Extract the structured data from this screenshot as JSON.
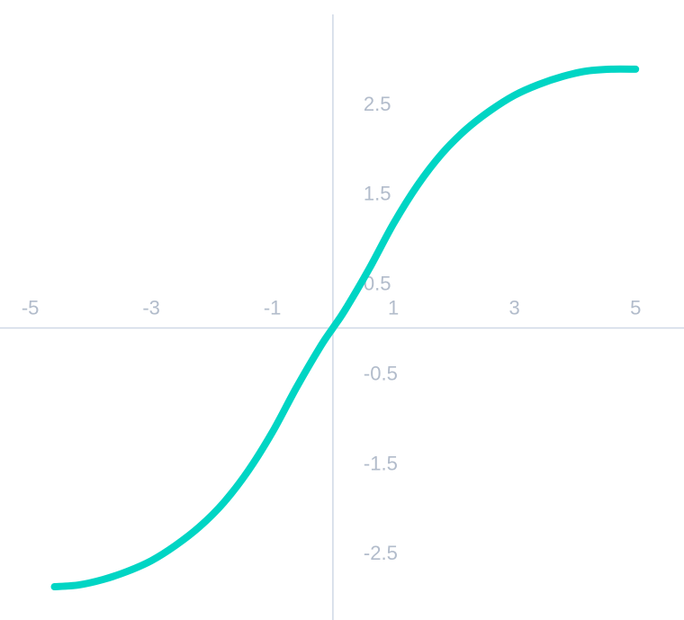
{
  "chart_data": {
    "type": "line",
    "title": "",
    "xlabel": "",
    "ylabel": "",
    "xlim": [
      -5.5,
      5.8
    ],
    "ylim": [
      -3.25,
      3.65
    ],
    "grid": false,
    "legend": "none",
    "x_ticks": [
      "-5",
      "-3",
      "-1",
      "1",
      "3",
      "5"
    ],
    "y_ticks": [
      "2.5",
      "1.5",
      "0.5",
      "-0.5",
      "-1.5",
      "-2.5"
    ],
    "colors": {
      "line": "#00d5c4",
      "axis": "#cfd8e6",
      "tick_label": "#b2bccb"
    },
    "series": [
      {
        "x": [
          -4.6,
          -4.2,
          -3.8,
          -3.4,
          -3.0,
          -2.6,
          -2.2,
          -1.8,
          -1.4,
          -1.0,
          -0.6,
          -0.2,
          0.0,
          0.2,
          0.6,
          1.0,
          1.4,
          1.8,
          2.2,
          2.6,
          3.0,
          3.4,
          3.8,
          4.2,
          4.6,
          5.0
        ],
        "y": [
          -2.88,
          -2.86,
          -2.8,
          -2.71,
          -2.59,
          -2.42,
          -2.21,
          -1.94,
          -1.59,
          -1.16,
          -0.66,
          -0.2,
          0.0,
          0.2,
          0.66,
          1.16,
          1.59,
          1.94,
          2.21,
          2.42,
          2.59,
          2.71,
          2.8,
          2.86,
          2.88,
          2.88
        ]
      }
    ]
  }
}
